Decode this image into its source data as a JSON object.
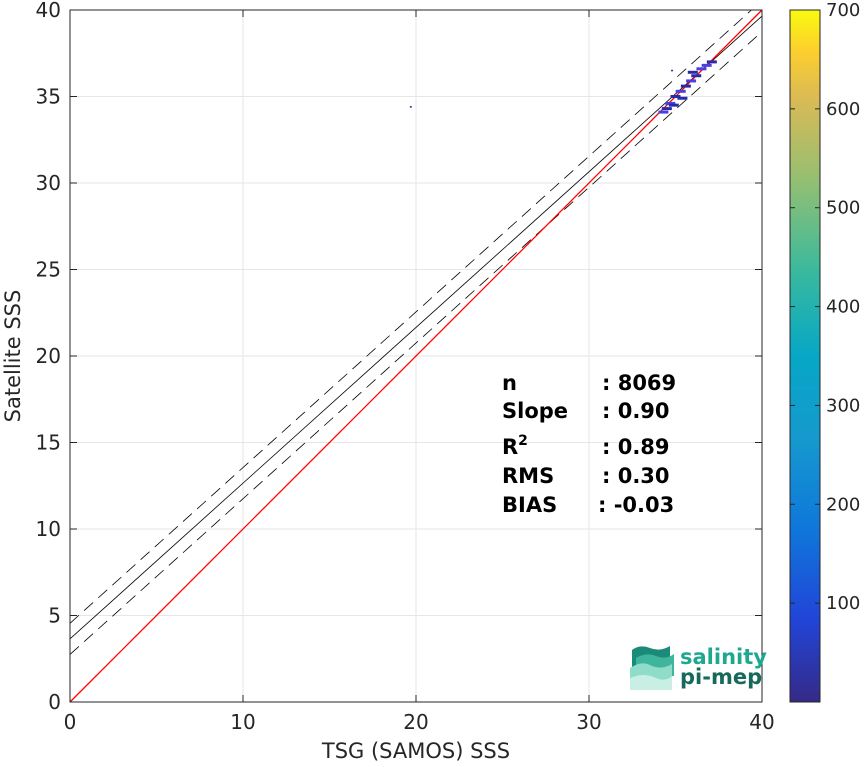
{
  "chart_data": {
    "type": "scatter",
    "title": "",
    "xlabel": "TSG (SAMOS) SSS",
    "ylabel": "Satellite SSS",
    "xlim": [
      0,
      40
    ],
    "ylim": [
      0,
      40
    ],
    "xticks": [
      "0",
      "10",
      "20",
      "30",
      "40"
    ],
    "yticks": [
      "0",
      "5",
      "10",
      "15",
      "20",
      "25",
      "30",
      "35",
      "40"
    ],
    "grid": true,
    "colorbar": {
      "range": [
        0,
        700
      ],
      "ticks": [
        "100",
        "200",
        "300",
        "400",
        "500",
        "600",
        "700"
      ],
      "colormap": "parula"
    },
    "identity_line": {
      "color": "#ff0000",
      "from": [
        0,
        0
      ],
      "to": [
        40,
        40
      ]
    },
    "fit_line": {
      "slope": 0.9,
      "intercept": 3.65,
      "band": 0.9,
      "color": "#000000"
    },
    "points": [
      {
        "x": 34.3,
        "y": 34.1,
        "count": 40
      },
      {
        "x": 34.5,
        "y": 34.3,
        "count": 30
      },
      {
        "x": 34.7,
        "y": 34.6,
        "count": 35
      },
      {
        "x": 35.0,
        "y": 35.0,
        "count": 25
      },
      {
        "x": 35.3,
        "y": 35.3,
        "count": 40
      },
      {
        "x": 35.6,
        "y": 35.6,
        "count": 30
      },
      {
        "x": 35.9,
        "y": 35.9,
        "count": 45
      },
      {
        "x": 36.2,
        "y": 36.2,
        "count": 30
      },
      {
        "x": 36.5,
        "y": 36.6,
        "count": 50
      },
      {
        "x": 36.8,
        "y": 36.8,
        "count": 35
      },
      {
        "x": 37.1,
        "y": 37.0,
        "count": 25
      },
      {
        "x": 35.4,
        "y": 34.9,
        "count": 20
      },
      {
        "x": 34.9,
        "y": 34.5,
        "count": 20
      },
      {
        "x": 36.0,
        "y": 36.4,
        "count": 20
      },
      {
        "x": 19.7,
        "y": 34.4,
        "count": 1
      },
      {
        "x": 34.8,
        "y": 36.5,
        "count": 5
      }
    ],
    "stats": [
      {
        "label": "n",
        "value": ": 8069"
      },
      {
        "label": "Slope",
        "value": ": 0.90"
      },
      {
        "label": "R",
        "sup": "2",
        "value": ": 0.89"
      },
      {
        "label": "RMS",
        "value": ": 0.30"
      },
      {
        "label": "BIAS",
        "value": ": -0.03"
      }
    ]
  },
  "logo": {
    "line1": "salinity",
    "line2": "pi-mep",
    "color1": "#1fa88f",
    "color2": "#17695c"
  },
  "colors": {
    "axis": "#262626",
    "grid": "#e6e6e6",
    "scatter": "#3a3ad6"
  }
}
